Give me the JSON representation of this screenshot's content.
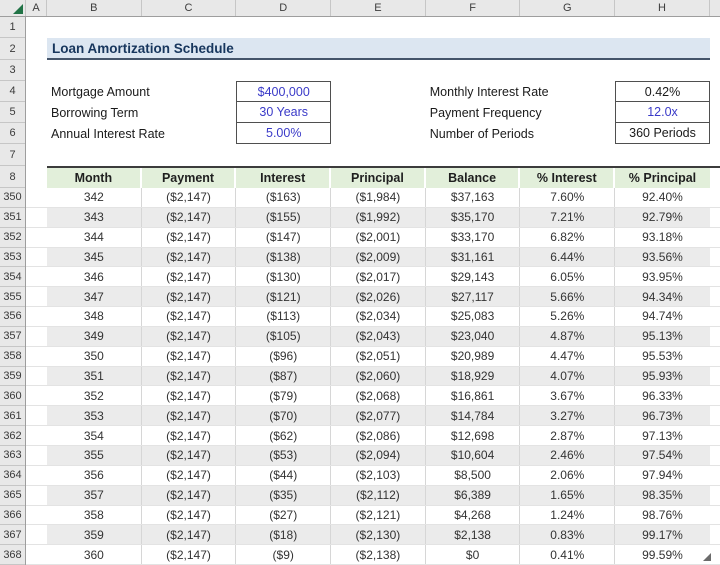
{
  "columns": {
    "letters": [
      "A",
      "B",
      "C",
      "D",
      "E",
      "F",
      "G",
      "H"
    ]
  },
  "rows": {
    "top": [
      "1",
      "2",
      "3",
      "4",
      "5",
      "6",
      "7",
      "8"
    ],
    "data": [
      "350",
      "351",
      "352",
      "353",
      "354",
      "355",
      "356",
      "357",
      "358",
      "359",
      "360",
      "361",
      "362",
      "363",
      "364",
      "365",
      "366",
      "367",
      "368"
    ]
  },
  "title": "Loan Amortization Schedule",
  "summary": {
    "left": [
      {
        "label": "Mortgage Amount",
        "value": "$400,000"
      },
      {
        "label": "Borrowing Term",
        "value": "30 Years"
      },
      {
        "label": "Annual Interest Rate",
        "value": "5.00%"
      }
    ],
    "right": [
      {
        "label": "Monthly Interest Rate",
        "value": "0.42%"
      },
      {
        "label": "Payment Frequency",
        "value": "12.0x"
      },
      {
        "label": "Number of Periods",
        "value": "360 Periods"
      }
    ]
  },
  "table": {
    "headers": [
      "Month",
      "Payment",
      "Interest",
      "Principal",
      "Balance",
      "% Interest",
      "% Principal"
    ],
    "rows": [
      [
        "342",
        "($2,147)",
        "($163)",
        "($1,984)",
        "$37,163",
        "7.60%",
        "92.40%"
      ],
      [
        "343",
        "($2,147)",
        "($155)",
        "($1,992)",
        "$35,170",
        "7.21%",
        "92.79%"
      ],
      [
        "344",
        "($2,147)",
        "($147)",
        "($2,001)",
        "$33,170",
        "6.82%",
        "93.18%"
      ],
      [
        "345",
        "($2,147)",
        "($138)",
        "($2,009)",
        "$31,161",
        "6.44%",
        "93.56%"
      ],
      [
        "346",
        "($2,147)",
        "($130)",
        "($2,017)",
        "$29,143",
        "6.05%",
        "93.95%"
      ],
      [
        "347",
        "($2,147)",
        "($121)",
        "($2,026)",
        "$27,117",
        "5.66%",
        "94.34%"
      ],
      [
        "348",
        "($2,147)",
        "($113)",
        "($2,034)",
        "$25,083",
        "5.26%",
        "94.74%"
      ],
      [
        "349",
        "($2,147)",
        "($105)",
        "($2,043)",
        "$23,040",
        "4.87%",
        "95.13%"
      ],
      [
        "350",
        "($2,147)",
        "($96)",
        "($2,051)",
        "$20,989",
        "4.47%",
        "95.53%"
      ],
      [
        "351",
        "($2,147)",
        "($87)",
        "($2,060)",
        "$18,929",
        "4.07%",
        "95.93%"
      ],
      [
        "352",
        "($2,147)",
        "($79)",
        "($2,068)",
        "$16,861",
        "3.67%",
        "96.33%"
      ],
      [
        "353",
        "($2,147)",
        "($70)",
        "($2,077)",
        "$14,784",
        "3.27%",
        "96.73%"
      ],
      [
        "354",
        "($2,147)",
        "($62)",
        "($2,086)",
        "$12,698",
        "2.87%",
        "97.13%"
      ],
      [
        "355",
        "($2,147)",
        "($53)",
        "($2,094)",
        "$10,604",
        "2.46%",
        "97.54%"
      ],
      [
        "356",
        "($2,147)",
        "($44)",
        "($2,103)",
        "$8,500",
        "2.06%",
        "97.94%"
      ],
      [
        "357",
        "($2,147)",
        "($35)",
        "($2,112)",
        "$6,389",
        "1.65%",
        "98.35%"
      ],
      [
        "358",
        "($2,147)",
        "($27)",
        "($2,121)",
        "$4,268",
        "1.24%",
        "98.76%"
      ],
      [
        "359",
        "($2,147)",
        "($18)",
        "($2,130)",
        "$2,138",
        "0.83%",
        "99.17%"
      ],
      [
        "360",
        "($2,147)",
        "($9)",
        "($2,138)",
        "$0",
        "0.41%",
        "99.59%"
      ]
    ]
  },
  "colors": {
    "input_text_blue": "#3a3ac8",
    "title_bg": "#dce6f1",
    "title_text": "#17365d",
    "table_header_bg": "#e2efda",
    "band_row_bg": "#ebebeb",
    "select_all_green": "#217346"
  }
}
